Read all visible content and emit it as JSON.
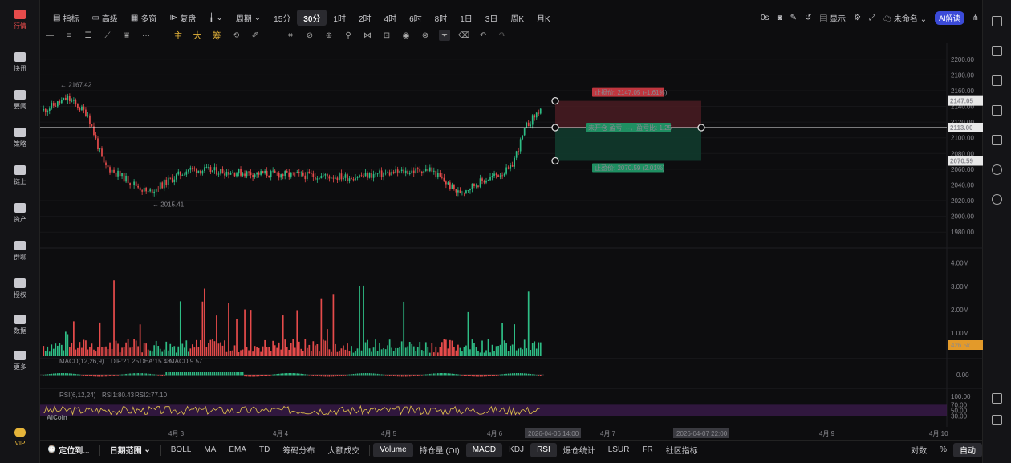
{
  "leftnav": {
    "items": [
      {
        "label": "行情",
        "icon": "chart-bars-icon",
        "active": true
      },
      {
        "label": "快讯",
        "icon": "news-flash-icon"
      },
      {
        "label": "要闻",
        "icon": "document-icon"
      },
      {
        "label": "策略",
        "icon": "robot-icon"
      },
      {
        "label": "链上",
        "icon": "chain-icon"
      },
      {
        "label": "资产",
        "icon": "wallet-icon"
      },
      {
        "label": "群聊",
        "icon": "chat-icon"
      },
      {
        "label": "授权",
        "icon": "key-icon"
      },
      {
        "label": "数据",
        "icon": "monitor-icon"
      },
      {
        "label": "更多",
        "icon": "grid-icon"
      },
      {
        "label": "VIP",
        "icon": "vip-icon"
      }
    ]
  },
  "topbar": {
    "indicator": "指标",
    "advanced": "高级",
    "multi": "多窗",
    "replay": "复盘",
    "period": "周期",
    "timeframes": [
      "15分",
      "30分",
      "1时",
      "2时",
      "4时",
      "6时",
      "8时",
      "1日",
      "3日",
      "周K",
      "月K"
    ],
    "selected": "30分",
    "latency": "0s",
    "display": "显示",
    "layout_name": "未命名",
    "ai": "AI解读"
  },
  "drawtools": [
    "主",
    "大",
    "筹"
  ],
  "chart_data": {
    "type": "candlestick",
    "price_axis": [
      "2200.00",
      "2180.00",
      "2160.00",
      "2140.00",
      "2120.00",
      "2100.00",
      "2080.00",
      "2060.00",
      "2040.00",
      "2020.00",
      "2000.00",
      "1980.00"
    ],
    "price_range": [
      1970,
      2210
    ],
    "high_label": "2167.42",
    "low_label": "2015.41",
    "current_price": "2147.05",
    "hline_price": "2113.00",
    "tp_price": "2070.59",
    "stop_label": "止损价: 2147.05 (-1.61%)",
    "target_label": "止盈价: 2070.59 (2.01%)",
    "position_label": "未开仓 盈亏: --，盈亏比: 1.25",
    "volume_axis": [
      "4.00M",
      "3.00M",
      "2.00M",
      "1.00M"
    ],
    "volume_value": "426.5k",
    "macd_legend": {
      "name": "MACD(12,26,9)",
      "dif": "DIF:21.25",
      "dea": "DEA:15.48",
      "macd": "MACD:9.57"
    },
    "macd_axis": [
      "0.00"
    ],
    "rsi_legend": {
      "name": "RSI(6,12,24)",
      "rsi1": "RSI1:80.43",
      "rsi2": "RSI2:77.10"
    },
    "rsi_axis": [
      "100.00",
      "70.00",
      "50.00",
      "30.00"
    ],
    "time_labels": [
      "4月 3",
      "4月 4",
      "4月 5",
      "4月 6",
      "4月 7",
      "4月 9",
      "4月 10"
    ],
    "time_highlights": [
      "2026-04-06 14:00",
      "2026-04-07 22:00"
    ],
    "watermark": "AiCoin"
  },
  "bottombar": {
    "locate": "定位到...",
    "range": "日期范围",
    "indicators": [
      "BOLL",
      "MA",
      "EMA",
      "TD",
      "筹码分布",
      "大额成交"
    ],
    "subs": [
      "Volume",
      "持仓量 (OI)",
      "MACD",
      "KDJ",
      "RSI",
      "爆仓统计",
      "LSUR",
      "FR",
      "社区指标"
    ],
    "right": [
      "对数",
      "%",
      "自动"
    ]
  }
}
